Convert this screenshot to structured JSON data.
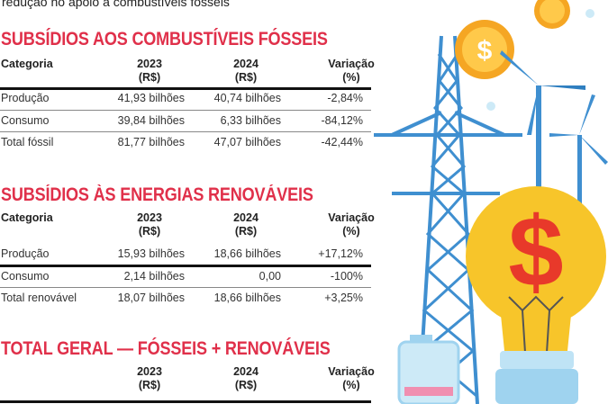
{
  "subtitle": "redução no apoio a combustíveis fósseis",
  "tables": [
    {
      "title": "SUBSÍDIOS AOS COMBUSTÍVEIS FÓSSEIS",
      "headers": {
        "categoria": "Categoria",
        "y2023": "2023",
        "y2024": "2024",
        "var": "Variação",
        "unit_rs": "(R$)",
        "unit_pct": "(%)"
      },
      "rows": [
        {
          "cat": "Produção",
          "v2023": "41,93 bilhões",
          "v2024": "40,74 bilhões",
          "var": "-2,84%"
        },
        {
          "cat": "Consumo",
          "v2023": "39,84 bilhões",
          "v2024": "6,33 bilhões",
          "var": "-84,12%"
        },
        {
          "cat": "Total fóssil",
          "v2023": "81,77 bilhões",
          "v2024": "47,07 bilhões",
          "var": "-42,44%"
        }
      ]
    },
    {
      "title": "SUBSÍDIOS ÀS ENERGIAS RENOVÁVEIS",
      "headers": {
        "categoria": "Categoria",
        "y2023": "2023",
        "y2024": "2024",
        "var": "Variação",
        "unit_rs": "(R$)",
        "unit_pct": "(%)"
      },
      "rows": [
        {
          "cat": "Produção",
          "v2023": "15,93 bilhões",
          "v2024": "18,66 bilhões",
          "var": "+17,12%"
        },
        {
          "cat": "Consumo",
          "v2023": "2,14 bilhões",
          "v2024": "0,00",
          "var": "-100%"
        },
        {
          "cat": "Total renovável",
          "v2023": "18,07 bilhões",
          "v2024": "18,66 bilhões",
          "var": "+3,25%"
        }
      ]
    },
    {
      "title": "TOTAL GERAL — FÓSSEIS + RENOVÁVEIS",
      "headers": {
        "y2023": "2023",
        "y2024": "2024",
        "var": "Variação",
        "unit_rs": "(R$)",
        "unit_pct": "(%)"
      }
    }
  ],
  "illustration": {
    "coin_symbol": "$",
    "bulb_symbol": "$",
    "colors": {
      "title": "#e0304a",
      "pylon": "#3f8fd0",
      "bulb": "#f7c52a",
      "coin": "#f5a623",
      "dollar": "#e8392a"
    }
  }
}
